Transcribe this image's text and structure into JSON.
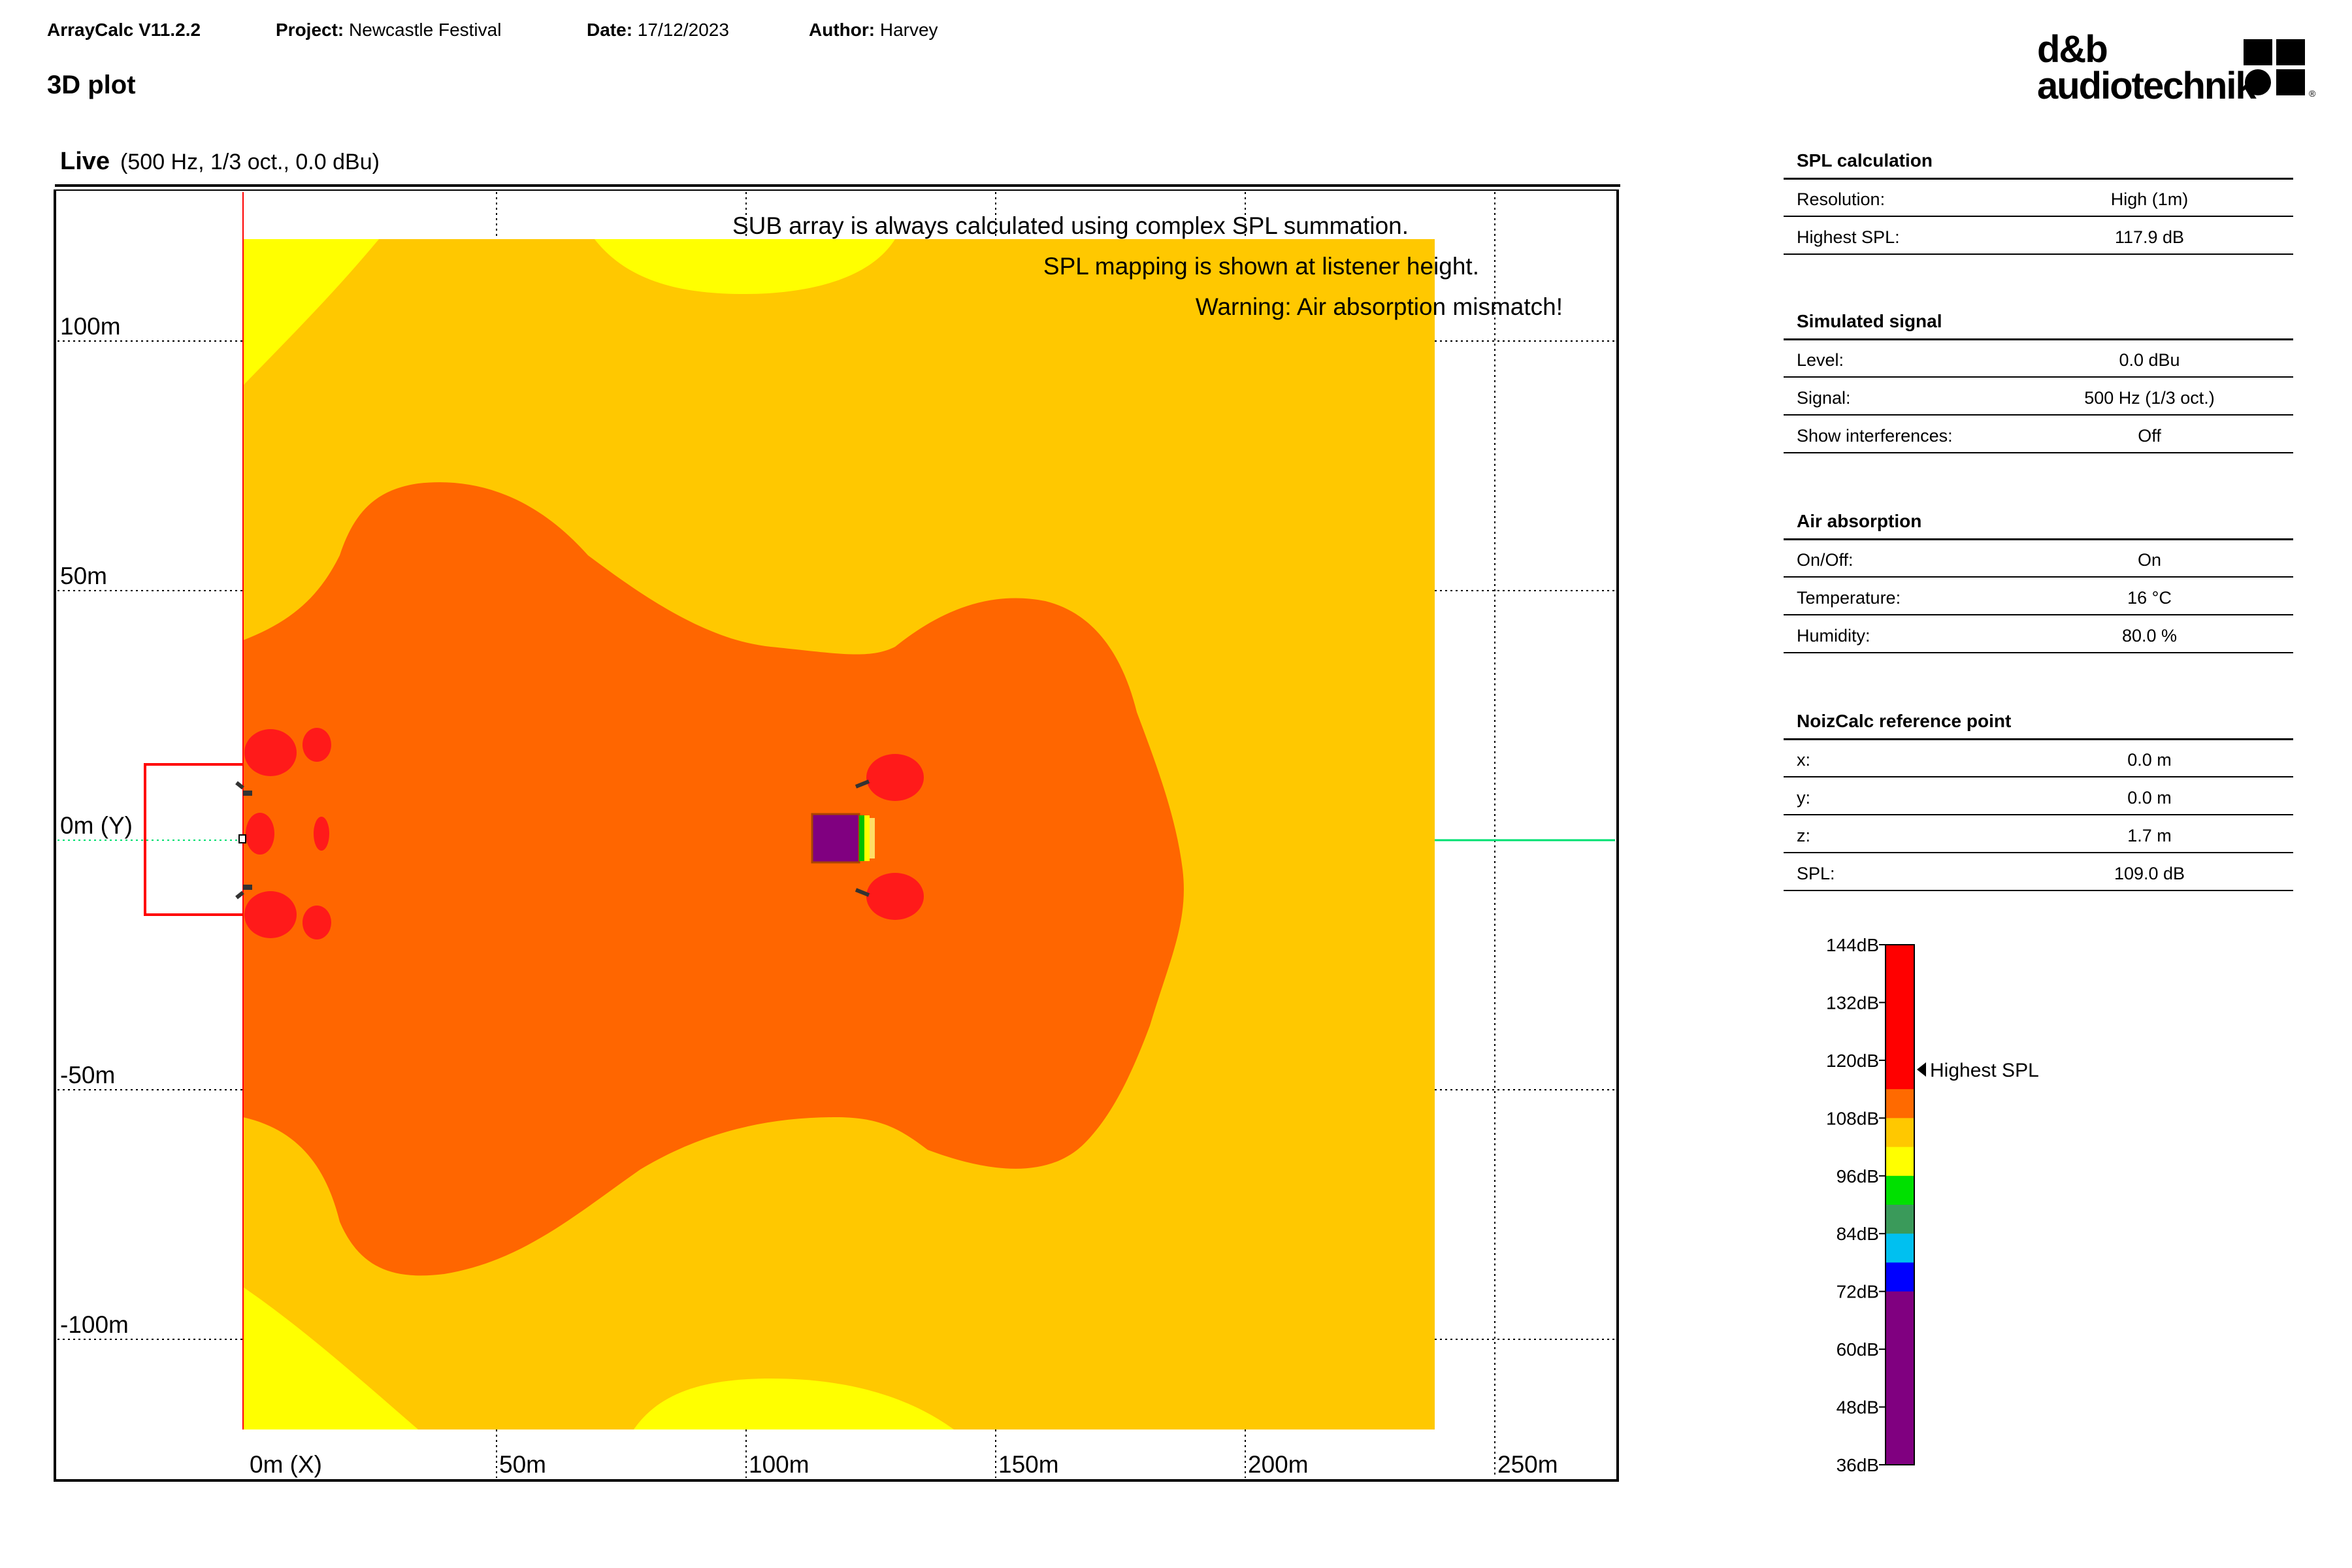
{
  "header": {
    "app": "ArrayCalc V11.2.2",
    "project_label": "Project:",
    "project": "Newcastle Festival",
    "date_label": "Date:",
    "date": "17/12/2023",
    "author_label": "Author:",
    "author": "Harvey",
    "logo_line1": "d&b",
    "logo_line2": "audiotechnik"
  },
  "page_title": "3D plot",
  "plot": {
    "title": "Live",
    "subtitle": "(500 Hz, 1/3 oct., 0.0 dBu)",
    "notes": [
      "SUB array is always calculated using complex SPL summation.",
      "SPL mapping is shown at listener height.",
      "Warning: Air absorption mismatch!"
    ],
    "x_ticks": [
      "0m (X)",
      "50m",
      "100m",
      "150m",
      "200m",
      "250m"
    ],
    "y_ticks": [
      "100m",
      "50m",
      "0m (Y)",
      "-50m",
      "-100m"
    ]
  },
  "panels": [
    {
      "title": "SPL calculation",
      "rows": [
        {
          "label": "Resolution:",
          "value": "High (1m)"
        },
        {
          "label": "Highest SPL:",
          "value": "117.9 dB"
        }
      ]
    },
    {
      "title": "Simulated signal",
      "rows": [
        {
          "label": "Level:",
          "value": "0.0 dBu"
        },
        {
          "label": "Signal:",
          "value": "500 Hz (1/3 oct.)"
        },
        {
          "label": "Show interferences:",
          "value": "Off"
        }
      ]
    },
    {
      "title": "Air absorption",
      "rows": [
        {
          "label": "On/Off:",
          "value": "On"
        },
        {
          "label": "Temperature:",
          "value": "16 °C"
        },
        {
          "label": "Humidity:",
          "value": "80.0 %"
        }
      ]
    },
    {
      "title": "NoizCalc reference point",
      "rows": [
        {
          "label": "x:",
          "value": "0.0 m"
        },
        {
          "label": "y:",
          "value": "0.0 m"
        },
        {
          "label": "z:",
          "value": "1.7 m"
        },
        {
          "label": "SPL:",
          "value": "109.0 dB"
        }
      ]
    }
  ],
  "legend": {
    "ticks": [
      "144dB",
      "132dB",
      "120dB",
      "108dB",
      "96dB",
      "84dB",
      "72dB",
      "60dB",
      "48dB",
      "36dB"
    ],
    "marker_label": "Highest SPL",
    "colors": [
      "#ff0000",
      "#ff0000",
      "#ff0000",
      "#ff0000",
      "#ff0000",
      "#ff6a00",
      "#ffc800",
      "#ffff00",
      "#00e000",
      "#3a9a5a",
      "#00c0f0",
      "#0000ff",
      "#800080",
      "#800080",
      "#800080",
      "#800080",
      "#800080",
      "#800080"
    ]
  },
  "colors": {
    "field_yellow": "#ffc800",
    "edge_yellow": "#ffff00",
    "orange": "#ff6600",
    "red": "#ff1a1a",
    "speaker_box": "#800080",
    "reference_line": "#00e070"
  }
}
